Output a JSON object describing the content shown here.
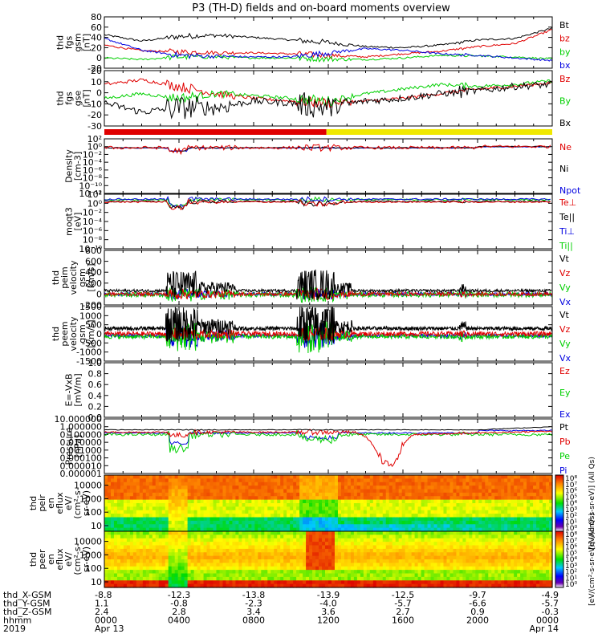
{
  "title": "P3 (TH-D) fields and on-board moments overview",
  "colors": {
    "black": "#000000",
    "red": "#e00000",
    "green": "#00d000",
    "blue": "#0000e0",
    "yellow": "#f0e800"
  },
  "chart_data": [
    {
      "type": "line",
      "id": "fgs-gsm",
      "ylabel": [
        "thd",
        "fgs",
        "gsm",
        "[nT]"
      ],
      "ylim": [
        -20,
        80
      ],
      "yticks": [
        "80",
        "60",
        "40",
        "20",
        "0",
        "-20"
      ],
      "legend": [
        {
          "name": "Bt",
          "color": "#000000"
        },
        {
          "name": "bz",
          "color": "#e00000"
        },
        {
          "name": "by",
          "color": "#00d000"
        },
        {
          "name": "bx",
          "color": "#0000e0"
        }
      ],
      "series": [
        {
          "name": "Bt",
          "color": "#000000",
          "x": [
            0,
            2,
            4,
            6,
            8,
            10,
            12,
            14,
            16,
            18,
            20,
            22,
            24
          ],
          "values": [
            45,
            33,
            42,
            44,
            40,
            35,
            30,
            22,
            20,
            25,
            35,
            38,
            58
          ]
        },
        {
          "name": "bz",
          "color": "#e00000",
          "x": [
            0,
            2,
            4,
            6,
            8,
            10,
            12,
            14,
            16,
            18,
            20,
            22,
            24
          ],
          "values": [
            25,
            14,
            12,
            10,
            10,
            8,
            5,
            2,
            8,
            13,
            22,
            28,
            55
          ]
        },
        {
          "name": "by",
          "color": "#00d000",
          "x": [
            0,
            2,
            4,
            6,
            8,
            10,
            12,
            14,
            16,
            18,
            20,
            22,
            24
          ],
          "values": [
            0,
            -3,
            2,
            2,
            0,
            0,
            -2,
            -3,
            0,
            5,
            4,
            2,
            -2
          ]
        },
        {
          "name": "bx",
          "color": "#0000e0",
          "x": [
            0,
            2,
            4,
            6,
            8,
            10,
            12,
            14,
            16,
            18,
            20,
            22,
            24
          ],
          "values": [
            38,
            15,
            5,
            3,
            2,
            2,
            10,
            18,
            15,
            8,
            5,
            0,
            -5
          ]
        }
      ]
    },
    {
      "type": "line",
      "id": "fgs-gse",
      "ylabel": [
        "thd",
        "fgs",
        "gse",
        "[nT]"
      ],
      "ylim": [
        -35,
        25
      ],
      "yticks": [
        "20",
        "10",
        "0",
        "-10",
        "-20",
        "-30"
      ],
      "legend": [
        {
          "name": "Bz",
          "color": "#e00000"
        },
        {
          "name": "By",
          "color": "#00d000"
        },
        {
          "name": "Bx",
          "color": "#000000"
        }
      ],
      "series": [
        {
          "name": "Bz",
          "color": "#e00000",
          "x": [
            0,
            2,
            4,
            6,
            8,
            10,
            12,
            14,
            16,
            18,
            20,
            22,
            24
          ],
          "values": [
            10,
            15,
            8,
            0,
            -5,
            -8,
            -10,
            -8,
            -5,
            0,
            5,
            8,
            12
          ]
        },
        {
          "name": "By",
          "color": "#00d000",
          "x": [
            0,
            2,
            4,
            6,
            8,
            10,
            12,
            14,
            16,
            18,
            20,
            22,
            24
          ],
          "values": [
            -5,
            0,
            -5,
            0,
            -2,
            -5,
            -8,
            0,
            5,
            10,
            8,
            10,
            14
          ]
        },
        {
          "name": "Bx",
          "color": "#000000",
          "x": [
            0,
            2,
            4,
            6,
            8,
            10,
            12,
            14,
            16,
            18,
            20,
            22,
            24
          ],
          "values": [
            -10,
            -20,
            -15,
            -15,
            -8,
            -10,
            -15,
            -8,
            -5,
            0,
            3,
            8,
            10
          ]
        }
      ]
    },
    {
      "type": "line",
      "id": "density",
      "ylabel": [
        "Density",
        "[cm-3]"
      ],
      "ylog": true,
      "ylim": [
        1e-12,
        100
      ],
      "yticks": [
        "10²",
        "10⁰",
        "10⁻²",
        "10⁻⁴",
        "10⁻⁶",
        "10⁻⁸",
        "10⁻¹⁰",
        "10⁻¹²"
      ],
      "legend": [
        {
          "name": "Ne",
          "color": "#e00000"
        },
        {
          "name": "Ni",
          "color": "#000000"
        },
        {
          "name": "Npot",
          "color": "#0000e0"
        }
      ]
    },
    {
      "type": "line",
      "id": "moqt3",
      "ylabel": [
        "moqt3",
        "[eV]"
      ],
      "ylog": true,
      "ylim": [
        1e-10,
        100
      ],
      "yticks": [
        "10²",
        "10⁰",
        "10⁻²",
        "10⁻⁴",
        "10⁻⁶",
        "10⁻⁸",
        "10⁻¹⁰"
      ],
      "legend": [
        {
          "name": "Te⊥",
          "color": "#e00000"
        },
        {
          "name": "Te||",
          "color": "#000000"
        },
        {
          "name": "Ti⊥",
          "color": "#0000e0"
        },
        {
          "name": "Ti||",
          "color": "#00d000"
        }
      ]
    },
    {
      "type": "line",
      "id": "peim-velocity",
      "ylabel": [
        "thd",
        "peim",
        "velocity",
        "gsm",
        "[km/s]"
      ],
      "ylim": [
        -200,
        800
      ],
      "yticks": [
        "800",
        "600",
        "400",
        "200",
        "0",
        "-200"
      ],
      "legend": [
        {
          "name": "Vt",
          "color": "#000000"
        },
        {
          "name": "Vz",
          "color": "#e00000"
        },
        {
          "name": "Vy",
          "color": "#00d000"
        },
        {
          "name": "Vx",
          "color": "#0000e0"
        }
      ]
    },
    {
      "type": "line",
      "id": "peem-velocity",
      "ylabel": [
        "thd",
        "peem",
        "velocity",
        "gsm",
        "[km/s]"
      ],
      "ylim": [
        -1500,
        1500
      ],
      "yticks": [
        "1500",
        "1000",
        "500",
        "0",
        "-500",
        "-1000",
        "-1500"
      ],
      "legend": [
        {
          "name": "Vt",
          "color": "#000000"
        },
        {
          "name": "Vz",
          "color": "#e00000"
        },
        {
          "name": "Vy",
          "color": "#00d000"
        },
        {
          "name": "Vx",
          "color": "#0000e0"
        }
      ]
    },
    {
      "type": "line",
      "id": "efield",
      "ylabel": [
        "E=-VxB",
        "[mV/m]"
      ],
      "ylim": [
        0,
        1
      ],
      "yticks": [
        "1.0",
        "0.8",
        "0.6",
        "0.4",
        "0.2",
        "0.0"
      ],
      "legend": [
        {
          "name": "Ez",
          "color": "#e00000"
        },
        {
          "name": "Ey",
          "color": "#00d000"
        },
        {
          "name": "Ex",
          "color": "#0000e0"
        }
      ]
    },
    {
      "type": "line",
      "id": "pressure",
      "ylabel": [
        "Pressure",
        "[nPa]"
      ],
      "ylog": true,
      "ylim": [
        1e-06,
        10
      ],
      "yticks": [
        "10.000000",
        "1.000000",
        "0.100000",
        "0.010000",
        "0.001000",
        "0.000100",
        "0.000010",
        "0.000001"
      ],
      "legend": [
        {
          "name": "Pt",
          "color": "#000000"
        },
        {
          "name": "Pb",
          "color": "#e00000"
        },
        {
          "name": "Pe",
          "color": "#00d000"
        },
        {
          "name": "Pi",
          "color": "#0000e0"
        }
      ]
    },
    {
      "type": "heatmap",
      "id": "peir",
      "ylabel": [
        "thd",
        "peir",
        "en",
        "eflux",
        "eV/",
        "(cm²-s-",
        "sr-eV)"
      ],
      "ylog": true,
      "yticks": [
        "10000",
        "1000",
        "100",
        "10"
      ],
      "colorbar": {
        "label": "[eV/(cm²-s-sr-eV)] (All Qs)",
        "ticks": [
          "10⁸",
          "10⁷",
          "10⁶",
          "10⁵",
          "10⁴",
          "10³",
          "10²",
          "10¹",
          "10⁰"
        ]
      }
    },
    {
      "type": "heatmap",
      "id": "peer",
      "ylabel": [
        "thd",
        "peer",
        "en",
        "eflux",
        "eV/",
        "(cm²-s-",
        "sr-eV)"
      ],
      "ylog": true,
      "yticks": [
        "10000",
        "1000",
        "100",
        "10"
      ],
      "colorbar": {
        "label": "[eV/(cm²-s-sr-eV)] (All Qs)",
        "ticks": [
          "10⁸",
          "10⁷",
          "10⁶",
          "10⁵",
          "10⁴",
          "10³",
          "10²",
          "10¹",
          "10⁰"
        ]
      }
    }
  ],
  "footer": {
    "rows": [
      {
        "label": "thd_X-GSM",
        "values": [
          "-8.8",
          "-12.3",
          "-13.8",
          "-13.9",
          "-12.5",
          "-9.7",
          "-4.9"
        ]
      },
      {
        "label": "thd_Y-GSM",
        "values": [
          "1.1",
          "-0.8",
          "-2.3",
          "-4.0",
          "-5.7",
          "-6.6",
          "-5.7"
        ]
      },
      {
        "label": "thd_Z-GSM",
        "values": [
          "2.4",
          "2.8",
          "3.4",
          "3.6",
          "2.7",
          "0.9",
          "-0.3"
        ]
      },
      {
        "label": "hhmm",
        "values": [
          "0000",
          "0400",
          "0800",
          "1200",
          "1600",
          "2000",
          "0000"
        ]
      },
      {
        "label": "2019",
        "values": [
          "Apr 13",
          "",
          "",
          "",
          "",
          "",
          "Apr 14"
        ]
      }
    ]
  }
}
